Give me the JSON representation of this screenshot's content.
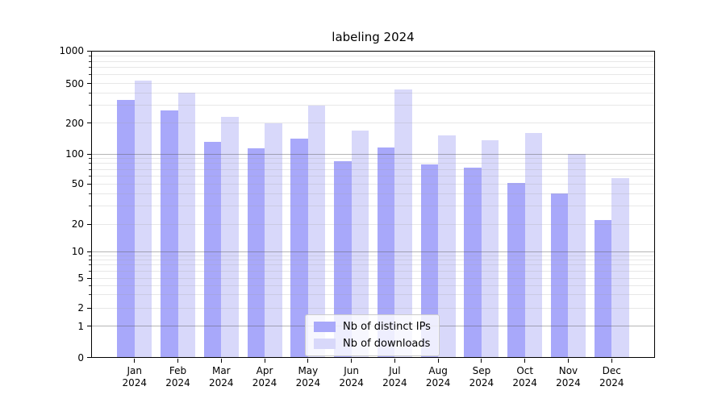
{
  "title": "labeling 2024",
  "chart_data": {
    "type": "bar",
    "title": "labeling 2024",
    "categories": [
      "Jan 2024",
      "Feb 2024",
      "Mar 2024",
      "Apr 2024",
      "May 2024",
      "Jun 2024",
      "Jul 2024",
      "Aug 2024",
      "Sep 2024",
      "Oct 2024",
      "Nov 2024",
      "Dec 2024"
    ],
    "x_tick_line1": [
      "Jan",
      "Feb",
      "Mar",
      "Apr",
      "May",
      "Jun",
      "Jul",
      "Aug",
      "Sep",
      "Oct",
      "Nov",
      "Dec"
    ],
    "x_tick_line2": "2024",
    "series": [
      {
        "name": "Nb of distinct IPs",
        "color": "#a8a8fa",
        "values": [
          340,
          265,
          130,
          113,
          142,
          85,
          115,
          78,
          73,
          51,
          40,
          22
        ]
      },
      {
        "name": "Nb of downloads",
        "color": "#d8d8fa",
        "values": [
          530,
          400,
          228,
          200,
          300,
          170,
          435,
          150,
          135,
          160,
          100,
          57
        ]
      }
    ],
    "yscale": "symlog",
    "ylim": [
      0,
      1000
    ],
    "y_ticks": [
      0,
      1,
      2,
      5,
      10,
      20,
      50,
      100,
      200,
      500,
      1000
    ],
    "y_tick_labels": [
      "0",
      "1",
      "2",
      "5",
      "10",
      "20",
      "50",
      "100",
      "200",
      "500",
      "1000"
    ],
    "grid": "horizontal major+minor, drawn above bars",
    "legend_position": "lower center",
    "colors": {
      "bar_ips": "#a8a8fa",
      "bar_downloads": "#d8d8fa",
      "grid_major": "#9e9e9e",
      "grid_minor": "#e2e2e2",
      "axis": "#000000",
      "legend_border": "#cccccc",
      "background": "#ffffff"
    }
  }
}
